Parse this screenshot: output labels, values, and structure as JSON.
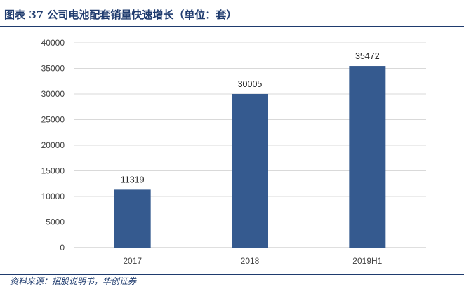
{
  "figure": {
    "title": "图表 37   公司电池配套销量快速增长（单位：套）",
    "source": "资料来源：招股说明书，华创证券"
  },
  "chart_data": {
    "type": "bar",
    "title": "",
    "xlabel": "",
    "ylabel": "",
    "categories": [
      "2017",
      "2018",
      "2019H1"
    ],
    "series": [
      {
        "values": [
          11319,
          30005,
          35472
        ]
      }
    ],
    "ylim": [
      0,
      40000
    ],
    "yticks": [
      0,
      5000,
      10000,
      15000,
      20000,
      25000,
      30000,
      35000,
      40000
    ],
    "grid": true,
    "legend": "none",
    "bar_color": "#355a8f",
    "grid_color": "#d9d9d9",
    "data_labels": true
  }
}
